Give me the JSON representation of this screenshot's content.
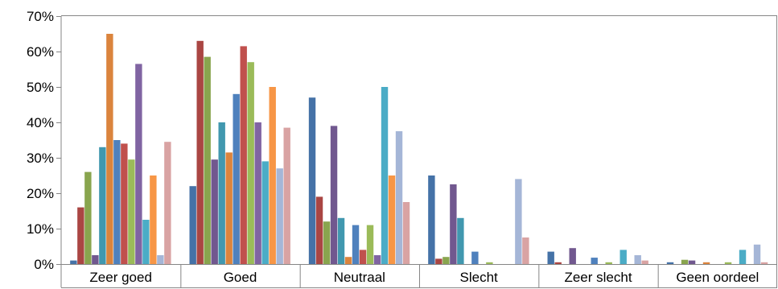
{
  "chart_data": {
    "type": "bar",
    "title": "",
    "xlabel": "",
    "ylabel": "",
    "ylim": [
      0,
      70
    ],
    "y_unit": "%",
    "y_ticks": [
      "0%",
      "10%",
      "20%",
      "30%",
      "40%",
      "50%",
      "60%",
      "70%"
    ],
    "grid": false,
    "legend": "none",
    "categories": [
      "Zeer goed",
      "Goed",
      "Neutraal",
      "Slecht",
      "Zeer slecht",
      "Geen oordeel"
    ],
    "series": [
      {
        "color": "#4572A7",
        "values": [
          1,
          22,
          47,
          25,
          3.5,
          0.5
        ]
      },
      {
        "color": "#AA4643",
        "values": [
          16,
          63,
          19,
          1.5,
          0.5,
          0
        ]
      },
      {
        "color": "#89A54E",
        "values": [
          26,
          58.5,
          12,
          2,
          0,
          1.2
        ]
      },
      {
        "color": "#71588F",
        "values": [
          2.5,
          29.5,
          39,
          22.5,
          4.5,
          1
        ]
      },
      {
        "color": "#4198AF",
        "values": [
          33,
          40,
          13,
          13,
          0,
          0
        ]
      },
      {
        "color": "#DB843D",
        "values": [
          65,
          31.5,
          2,
          0,
          0,
          0.5
        ]
      },
      {
        "color": "#4F81BD",
        "values": [
          35,
          48,
          11,
          3.5,
          1.8,
          0
        ]
      },
      {
        "color": "#C0504D",
        "values": [
          34,
          61.5,
          4,
          0,
          0,
          0
        ]
      },
      {
        "color": "#9BBB59",
        "values": [
          29.5,
          57,
          11,
          0.5,
          0.5,
          0.5
        ]
      },
      {
        "color": "#8064A2",
        "values": [
          56.5,
          40,
          2.5,
          0,
          0,
          0
        ]
      },
      {
        "color": "#4BACC6",
        "values": [
          12.5,
          29,
          50,
          0,
          4,
          4
        ]
      },
      {
        "color": "#F79646",
        "values": [
          25,
          50,
          25,
          0,
          0,
          0
        ]
      },
      {
        "color": "#A5B6D7",
        "values": [
          2.5,
          27,
          37.5,
          24,
          2.5,
          5.5
        ]
      },
      {
        "color": "#D9A3A3",
        "values": [
          34.5,
          38.5,
          17.5,
          7.5,
          1,
          0.5
        ]
      }
    ]
  }
}
